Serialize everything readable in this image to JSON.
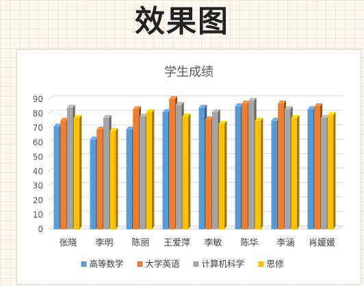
{
  "heading": "效果图",
  "chart_data": {
    "type": "bar",
    "title": "学生成绩",
    "xlabel": "",
    "ylabel": "",
    "categories": [
      "张晓",
      "李明",
      "陈丽",
      "王爱萍",
      "李敏",
      "陈华",
      "李涵",
      "肖媛媛"
    ],
    "series": [
      {
        "name": "高等数学",
        "color": "#5b9bd5",
        "values": [
          71,
          62,
          69,
          81,
          84,
          85,
          75,
          83
        ]
      },
      {
        "name": "大学英语",
        "color": "#ed7d31",
        "values": [
          75,
          69,
          83,
          90,
          76,
          87,
          87,
          85
        ]
      },
      {
        "name": "计算机科学",
        "color": "#a5a5a5",
        "values": [
          84,
          77,
          78,
          86,
          81,
          89,
          83,
          77
        ]
      },
      {
        "name": "思修",
        "color": "#ffc000",
        "values": [
          77,
          68,
          81,
          78,
          73,
          75,
          77,
          79
        ]
      }
    ],
    "ylim": [
      0,
      90
    ],
    "yticks": [
      0,
      10,
      20,
      30,
      40,
      50,
      60,
      70,
      80,
      90
    ],
    "grid": true,
    "legend": "bottom",
    "style": "3d-clustered-column"
  }
}
